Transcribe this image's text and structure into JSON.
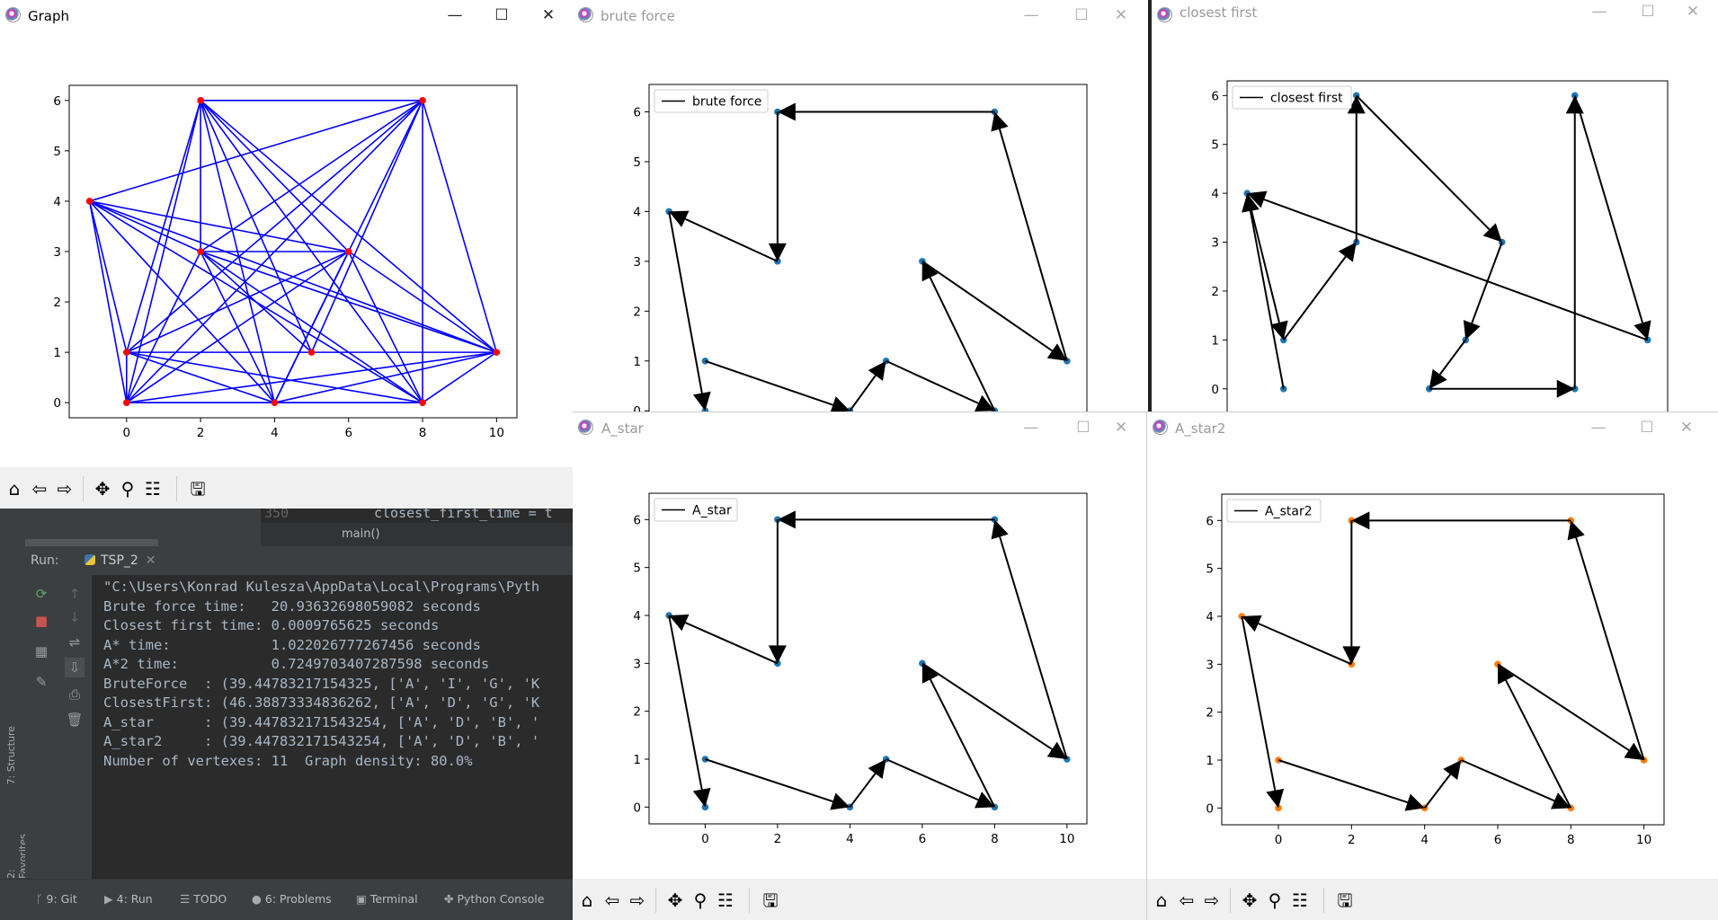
{
  "windows": {
    "graph": {
      "title": "Graph"
    },
    "brute_force": {
      "title": "brute force",
      "legend": "brute force"
    },
    "closest_first": {
      "title": "closest first",
      "legend": "closest first"
    },
    "a_star": {
      "title": "A_star",
      "legend": "A_star"
    },
    "a_star2": {
      "title": "A_star2",
      "legend": "A_star2"
    },
    "controls": {
      "minimize": "—",
      "maximize": "☐",
      "close": "✕"
    },
    "toolbar_icons": [
      "home-icon",
      "back-icon",
      "forward-icon",
      "pan-icon",
      "zoom-icon",
      "configure-icon",
      "save-icon"
    ]
  },
  "chart_data": [
    {
      "id": "graph",
      "type": "scatter",
      "title": "",
      "xticks": [
        0,
        2,
        4,
        6,
        8,
        10
      ],
      "yticks": [
        0,
        1,
        2,
        3,
        4,
        5,
        6
      ],
      "xlim": [
        -1.55,
        10.55
      ],
      "ylim": [
        -0.3,
        6.3
      ],
      "nodes": [
        [
          -1,
          4
        ],
        [
          0,
          0
        ],
        [
          0,
          1
        ],
        [
          2,
          3
        ],
        [
          2,
          6
        ],
        [
          4,
          0
        ],
        [
          5,
          1
        ],
        [
          6,
          3
        ],
        [
          8,
          0
        ],
        [
          8,
          6
        ],
        [
          10,
          1
        ]
      ],
      "edges": [
        [
          2,
          6,
          8,
          6
        ],
        [
          2,
          6,
          0,
          1
        ],
        [
          2,
          6,
          0,
          0
        ],
        [
          2,
          6,
          2,
          3
        ],
        [
          2,
          6,
          4,
          0
        ],
        [
          2,
          6,
          5,
          1
        ],
        [
          2,
          6,
          6,
          3
        ],
        [
          2,
          6,
          8,
          0
        ],
        [
          2,
          6,
          10,
          1
        ],
        [
          8,
          6,
          -1,
          4
        ],
        [
          8,
          6,
          0,
          1
        ],
        [
          8,
          6,
          0,
          0
        ],
        [
          8,
          6,
          2,
          3
        ],
        [
          8,
          6,
          4,
          0
        ],
        [
          8,
          6,
          5,
          1
        ],
        [
          8,
          6,
          8,
          0
        ],
        [
          8,
          6,
          10,
          1
        ],
        [
          -1,
          4,
          0,
          0
        ],
        [
          -1,
          4,
          0,
          1
        ],
        [
          -1,
          4,
          2,
          3
        ],
        [
          -1,
          4,
          6,
          3
        ],
        [
          -1,
          4,
          10,
          1
        ],
        [
          -1,
          4,
          8,
          0
        ],
        [
          -1,
          4,
          4,
          0
        ],
        [
          0,
          0,
          0,
          1
        ],
        [
          0,
          0,
          2,
          3
        ],
        [
          0,
          0,
          6,
          3
        ],
        [
          0,
          0,
          4,
          0
        ],
        [
          0,
          0,
          10,
          1
        ],
        [
          0,
          0,
          8,
          0
        ],
        [
          0,
          1,
          10,
          1
        ],
        [
          0,
          1,
          4,
          0
        ],
        [
          0,
          1,
          6,
          3
        ],
        [
          0,
          1,
          8,
          0
        ],
        [
          2,
          3,
          6,
          3
        ],
        [
          2,
          3,
          4,
          0
        ],
        [
          2,
          3,
          10,
          1
        ],
        [
          2,
          3,
          8,
          0
        ],
        [
          2,
          3,
          5,
          1
        ],
        [
          6,
          3,
          4,
          0
        ],
        [
          6,
          3,
          10,
          1
        ],
        [
          6,
          3,
          8,
          0
        ],
        [
          4,
          0,
          10,
          1
        ],
        [
          4,
          0,
          8,
          0
        ],
        [
          8,
          0,
          10,
          1
        ],
        [
          4,
          0,
          6,
          3
        ]
      ],
      "edge_color": "#0000ff",
      "node_color": "#ff0000"
    },
    {
      "id": "brute_force",
      "type": "line",
      "legend": [
        "brute force"
      ],
      "xticks": [],
      "yticks": [
        0,
        1,
        2,
        3,
        4,
        5,
        6
      ],
      "xlim": [
        -1.55,
        10.55
      ],
      "ylim": [
        -0.05,
        6.55
      ],
      "points": [
        [
          -1,
          4
        ],
        [
          0,
          0
        ],
        [
          0,
          1
        ],
        [
          2,
          3
        ],
        [
          2,
          6
        ],
        [
          4,
          0
        ],
        [
          5,
          1
        ],
        [
          6,
          3
        ],
        [
          8,
          0
        ],
        [
          8,
          6
        ],
        [
          10,
          1
        ]
      ],
      "path": [
        [
          0,
          1
        ],
        [
          4,
          0
        ],
        [
          5,
          1
        ],
        [
          8,
          0
        ],
        [
          6,
          3
        ],
        [
          10,
          1
        ],
        [
          8,
          6
        ],
        [
          2,
          6
        ],
        [
          2,
          3
        ],
        [
          -1,
          4
        ],
        [
          0,
          0
        ]
      ],
      "point_color": "#1f77b4"
    },
    {
      "id": "closest_first",
      "type": "line",
      "legend": [
        "closest first"
      ],
      "xticks": [],
      "yticks": [
        0,
        1,
        2,
        3,
        4,
        5,
        6
      ],
      "xlim": [
        -1.55,
        10.55
      ],
      "ylim": [
        -0.5,
        6.3
      ],
      "points": [
        [
          -1,
          4
        ],
        [
          0,
          0
        ],
        [
          0,
          1
        ],
        [
          2,
          3
        ],
        [
          2,
          6
        ],
        [
          4,
          0
        ],
        [
          5,
          1
        ],
        [
          6,
          3
        ],
        [
          8,
          0
        ],
        [
          8,
          6
        ],
        [
          10,
          1
        ]
      ],
      "path": [
        [
          0,
          0
        ],
        [
          -1,
          4
        ],
        [
          0,
          1
        ],
        [
          2,
          3
        ],
        [
          2,
          6
        ],
        [
          6,
          3
        ],
        [
          5,
          1
        ],
        [
          4,
          0
        ],
        [
          8,
          0
        ],
        [
          8,
          6
        ],
        [
          10,
          1
        ],
        [
          -1,
          4
        ]
      ],
      "point_color": "#1f77b4"
    },
    {
      "id": "a_star",
      "type": "line",
      "legend": [
        "A_star"
      ],
      "xticks": [
        0,
        2,
        4,
        6,
        8,
        10
      ],
      "yticks": [
        0,
        1,
        2,
        3,
        4,
        5,
        6
      ],
      "xlim": [
        -1.55,
        10.55
      ],
      "ylim": [
        -0.35,
        6.55
      ],
      "points": [
        [
          -1,
          4
        ],
        [
          0,
          0
        ],
        [
          0,
          1
        ],
        [
          2,
          3
        ],
        [
          2,
          6
        ],
        [
          4,
          0
        ],
        [
          5,
          1
        ],
        [
          6,
          3
        ],
        [
          8,
          0
        ],
        [
          8,
          6
        ],
        [
          10,
          1
        ]
      ],
      "path": [
        [
          0,
          1
        ],
        [
          4,
          0
        ],
        [
          5,
          1
        ],
        [
          8,
          0
        ],
        [
          6,
          3
        ],
        [
          10,
          1
        ],
        [
          8,
          6
        ],
        [
          2,
          6
        ],
        [
          2,
          3
        ],
        [
          -1,
          4
        ],
        [
          0,
          0
        ]
      ],
      "point_color": "#1f77b4"
    },
    {
      "id": "a_star2",
      "type": "line",
      "legend": [
        "A_star2"
      ],
      "xticks": [
        0,
        2,
        4,
        6,
        8,
        10
      ],
      "yticks": [
        0,
        1,
        2,
        3,
        4,
        5,
        6
      ],
      "xlim": [
        -1.55,
        10.55
      ],
      "ylim": [
        -0.35,
        6.55
      ],
      "points": [
        [
          -1,
          4
        ],
        [
          0,
          0
        ],
        [
          0,
          1
        ],
        [
          2,
          3
        ],
        [
          2,
          6
        ],
        [
          4,
          0
        ],
        [
          5,
          1
        ],
        [
          6,
          3
        ],
        [
          8,
          0
        ],
        [
          8,
          6
        ],
        [
          10,
          1
        ]
      ],
      "path": [
        [
          0,
          1
        ],
        [
          4,
          0
        ],
        [
          5,
          1
        ],
        [
          8,
          0
        ],
        [
          6,
          3
        ],
        [
          10,
          1
        ],
        [
          8,
          6
        ],
        [
          2,
          6
        ],
        [
          2,
          3
        ],
        [
          -1,
          4
        ],
        [
          0,
          0
        ]
      ],
      "point_color": "#ff7f0e"
    }
  ],
  "ide": {
    "editor_line_number": "350",
    "editor_code": "closest_first_time = t",
    "breadcrumb": "main()",
    "run_label": "Run:",
    "run_tab": "TSP_2",
    "console_lines": [
      "\"C:\\Users\\Konrad Kulesza\\AppData\\Local\\Programs\\Pyth",
      "Brute force time:   20.93632698059082 seconds",
      "Closest first time: 0.0009765625 seconds",
      "A* time:            1.022026777267456 seconds",
      "A*2 time:           0.7249703407287598 seconds",
      "BruteForce  : (39.44783217154325, ['A', 'I', 'G', 'K",
      "ClosestFirst: (46.38873334836262, ['A', 'D', 'G', 'K",
      "A_star      : (39.447832171543254, ['A', 'D', 'B', '",
      "A_star2     : (39.447832171543254, ['A', 'D', 'B', '",
      "Number of vertexes: 11  Graph density: 80.0%"
    ],
    "side_tabs": [
      "7: Structure",
      "2: Favorites"
    ],
    "status_tabs": [
      {
        "icon": "git-icon",
        "glyph": "ᚴ",
        "label": "9: Git"
      },
      {
        "icon": "run-icon",
        "glyph": "▶",
        "label": "4: Run"
      },
      {
        "icon": "todo-icon",
        "glyph": "☰",
        "label": "TODO"
      },
      {
        "icon": "problems-icon",
        "glyph": "●",
        "label": "6: Problems"
      },
      {
        "icon": "terminal-icon",
        "glyph": "▣",
        "label": "Terminal"
      },
      {
        "icon": "python-console-icon",
        "glyph": "✤",
        "label": "Python Console"
      }
    ]
  }
}
